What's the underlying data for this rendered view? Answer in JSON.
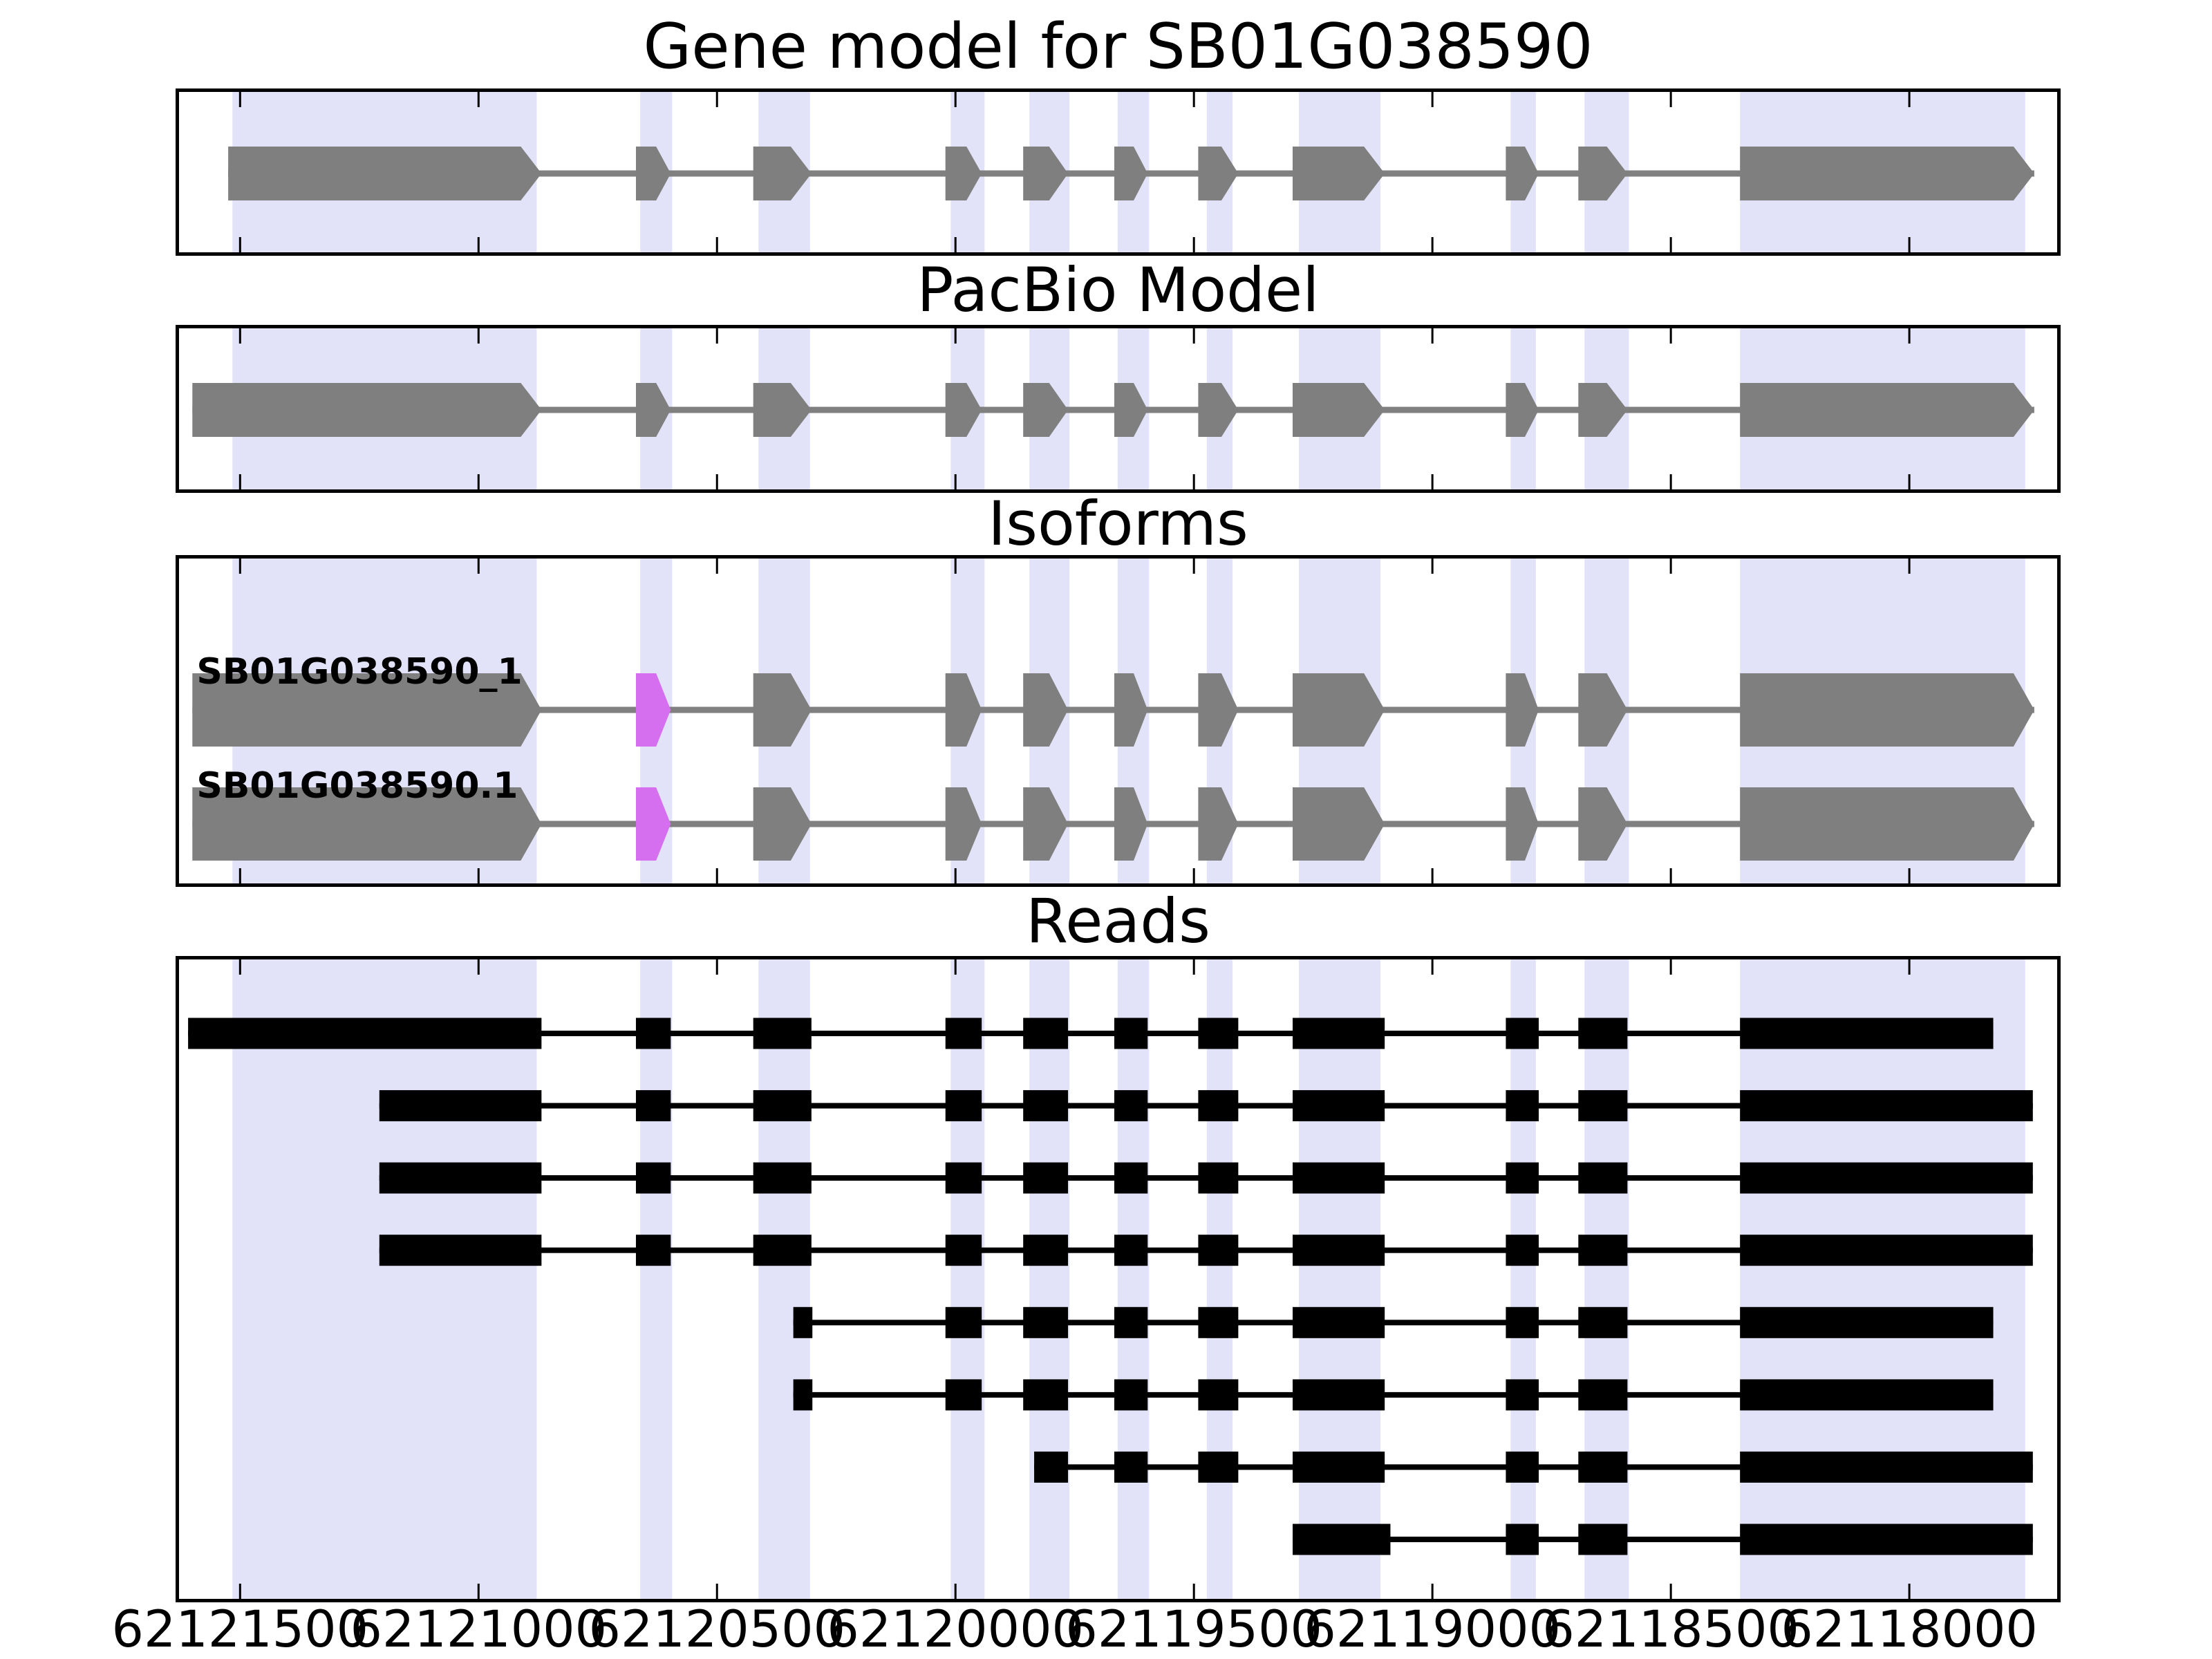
{
  "figure": {
    "main_title": "Gene model for SB01G038590",
    "gene_id": "SB01G038590"
  },
  "colors": {
    "exon": "#7f7f7f",
    "connector": "#808080",
    "read": "#000000",
    "special_exon": "#d66ef0",
    "band": "#e2e2f8",
    "frame": "#000000",
    "text": "#000000",
    "background": "#ffffff"
  },
  "chart_data": {
    "type": "genomic_track_plot",
    "gene_id": "SB01G038590",
    "x_axis": {
      "axis_left_coord": 62121628,
      "axis_right_coord": 62117690,
      "orientation": "reversed",
      "tick_positions": [
        62121500,
        62121000,
        62120500,
        62120000,
        62119500,
        62119000,
        62118500,
        62118000
      ],
      "tick_labels": [
        "62121500",
        "62121000",
        "62120500",
        "62120000",
        "62119500",
        "62119000",
        "62118500",
        "62118000"
      ]
    },
    "highlight_bands": [
      [
        62121516,
        62120878
      ],
      [
        62120661,
        62120594
      ],
      [
        62120413,
        62120305
      ],
      [
        62120010,
        62119939
      ],
      [
        62119845,
        62119761
      ],
      [
        62119660,
        62119594
      ],
      [
        62119473,
        62119419
      ],
      [
        62119280,
        62119109
      ],
      [
        62118836,
        62118783
      ],
      [
        62118681,
        62118588
      ],
      [
        62118355,
        62117757
      ]
    ],
    "panels": [
      {
        "title": "Gene model for SB01G038590",
        "name": "gene_model",
        "tracks": [
          {
            "style": "arrow",
            "exons": [
              [
                62121525,
                62120868
              ],
              [
                62120670,
                62120597
              ],
              [
                62120424,
                62120302
              ],
              [
                62120021,
                62119945
              ],
              [
                62119858,
                62119764
              ],
              [
                62119667,
                62119597
              ],
              [
                62119491,
                62119407
              ],
              [
                62119293,
                62119100
              ],
              [
                62118846,
                62118777
              ],
              [
                62118694,
                62118591
              ],
              [
                62118355,
                62117738
              ]
            ]
          }
        ]
      },
      {
        "title": "PacBio Model",
        "name": "pacbio_model",
        "tracks": [
          {
            "style": "arrow",
            "exons": [
              [
                62121600,
                62120868
              ],
              [
                62120670,
                62120597
              ],
              [
                62120424,
                62120302
              ],
              [
                62120021,
                62119945
              ],
              [
                62119858,
                62119764
              ],
              [
                62119667,
                62119597
              ],
              [
                62119491,
                62119407
              ],
              [
                62119293,
                62119100
              ],
              [
                62118846,
                62118777
              ],
              [
                62118694,
                62118591
              ],
              [
                62118355,
                62117738
              ]
            ]
          }
        ]
      },
      {
        "title": "Isoforms",
        "name": "isoforms",
        "tracks": [
          {
            "label": "SB01G038590_1",
            "style": "arrow",
            "special_exon_index": 1,
            "exons": [
              [
                62121600,
                62120868
              ],
              [
                62120670,
                62120597
              ],
              [
                62120424,
                62120302
              ],
              [
                62120021,
                62119945
              ],
              [
                62119858,
                62119764
              ],
              [
                62119667,
                62119597
              ],
              [
                62119491,
                62119407
              ],
              [
                62119293,
                62119100
              ],
              [
                62118846,
                62118777
              ],
              [
                62118694,
                62118591
              ],
              [
                62118355,
                62117738
              ]
            ]
          },
          {
            "label": "SB01G038590.1",
            "style": "arrow",
            "special_exon_index": 1,
            "exons": [
              [
                62121600,
                62120868
              ],
              [
                62120670,
                62120597
              ],
              [
                62120424,
                62120302
              ],
              [
                62120021,
                62119945
              ],
              [
                62119858,
                62119764
              ],
              [
                62119667,
                62119597
              ],
              [
                62119491,
                62119407
              ],
              [
                62119293,
                62119100
              ],
              [
                62118846,
                62118777
              ],
              [
                62118694,
                62118591
              ],
              [
                62118355,
                62117738
              ]
            ]
          }
        ]
      },
      {
        "title": "Reads",
        "name": "reads",
        "tracks": [
          {
            "style": "rect",
            "exons": [
              [
                62121609,
                62120868
              ],
              [
                62120670,
                62120597
              ],
              [
                62120424,
                62120302
              ],
              [
                62120021,
                62119945
              ],
              [
                62119858,
                62119764
              ],
              [
                62119667,
                62119597
              ],
              [
                62119491,
                62119407
              ],
              [
                62119293,
                62119100
              ],
              [
                62118846,
                62118777
              ],
              [
                62118694,
                62118591
              ],
              [
                62118355,
                62117824
              ]
            ]
          },
          {
            "style": "rect",
            "exons": [
              [
                62121208,
                62120868
              ],
              [
                62120670,
                62120597
              ],
              [
                62120424,
                62120302
              ],
              [
                62120021,
                62119945
              ],
              [
                62119858,
                62119764
              ],
              [
                62119667,
                62119597
              ],
              [
                62119491,
                62119407
              ],
              [
                62119293,
                62119100
              ],
              [
                62118846,
                62118777
              ],
              [
                62118694,
                62118591
              ],
              [
                62118355,
                62117741
              ]
            ]
          },
          {
            "style": "rect",
            "exons": [
              [
                62121208,
                62120868
              ],
              [
                62120670,
                62120597
              ],
              [
                62120424,
                62120302
              ],
              [
                62120021,
                62119945
              ],
              [
                62119858,
                62119764
              ],
              [
                62119667,
                62119597
              ],
              [
                62119491,
                62119407
              ],
              [
                62119293,
                62119100
              ],
              [
                62118846,
                62118777
              ],
              [
                62118694,
                62118591
              ],
              [
                62118355,
                62117741
              ]
            ]
          },
          {
            "style": "rect",
            "exons": [
              [
                62121208,
                62120868
              ],
              [
                62120670,
                62120597
              ],
              [
                62120424,
                62120302
              ],
              [
                62120021,
                62119945
              ],
              [
                62119858,
                62119764
              ],
              [
                62119667,
                62119597
              ],
              [
                62119491,
                62119407
              ],
              [
                62119293,
                62119100
              ],
              [
                62118846,
                62118777
              ],
              [
                62118694,
                62118591
              ],
              [
                62118355,
                62117741
              ]
            ]
          },
          {
            "style": "rect",
            "exons": [
              [
                62120340,
                62120300
              ],
              [
                62120021,
                62119945
              ],
              [
                62119858,
                62119764
              ],
              [
                62119667,
                62119597
              ],
              [
                62119491,
                62119407
              ],
              [
                62119293,
                62119100
              ],
              [
                62118846,
                62118777
              ],
              [
                62118694,
                62118591
              ],
              [
                62118355,
                62117824
              ]
            ]
          },
          {
            "style": "rect",
            "exons": [
              [
                62120340,
                62120300
              ],
              [
                62120021,
                62119945
              ],
              [
                62119858,
                62119764
              ],
              [
                62119667,
                62119597
              ],
              [
                62119491,
                62119407
              ],
              [
                62119293,
                62119100
              ],
              [
                62118846,
                62118777
              ],
              [
                62118694,
                62118591
              ],
              [
                62118355,
                62117824
              ]
            ]
          },
          {
            "style": "rect",
            "exons": [
              [
                62119835,
                62119764
              ],
              [
                62119667,
                62119597
              ],
              [
                62119491,
                62119407
              ],
              [
                62119293,
                62119100
              ],
              [
                62118846,
                62118777
              ],
              [
                62118694,
                62118591
              ],
              [
                62118355,
                62117741
              ]
            ]
          },
          {
            "style": "rect",
            "exons": [
              [
                62119293,
                62119088
              ],
              [
                62118846,
                62118777
              ],
              [
                62118694,
                62118591
              ],
              [
                62118355,
                62117741
              ]
            ]
          }
        ]
      }
    ]
  }
}
